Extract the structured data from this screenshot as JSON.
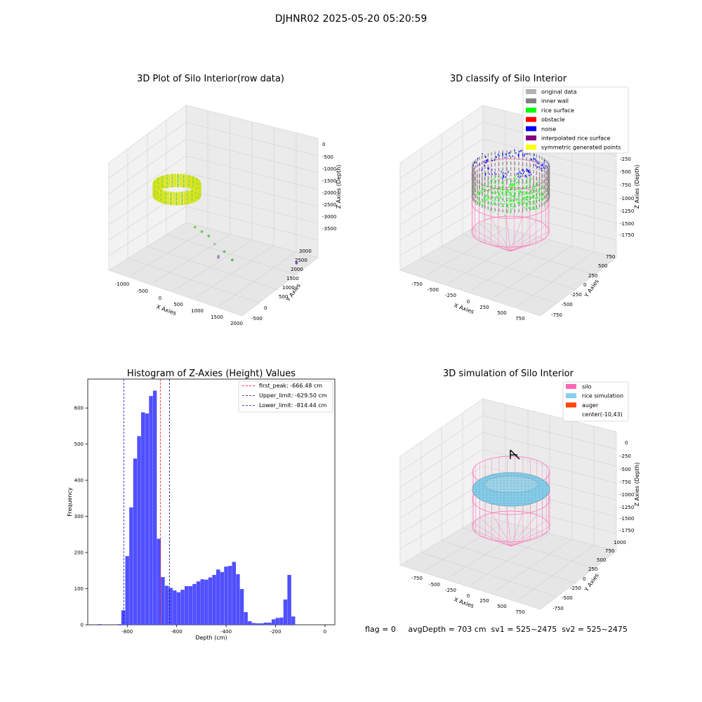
{
  "suptitle": "DJHNR02 2025-05-20 05:20:59",
  "status_text": "flag = 0     avgDepth = 703 cm  sv1 = 525~2475  sv2 = 525~2475",
  "colors": {
    "histogram_bar": "#5050ff",
    "first_peak_line": "#ff0000",
    "limit_line": "#00008b",
    "silo": "#ff69b4",
    "rice_simulation": "#87ceeb",
    "auger": "#ff4500",
    "original_data": "#b3b3b3",
    "inner_wall": "#808080",
    "rice_surface": "#00ff00",
    "obstacle": "#ff0000",
    "noise": "#0000ff",
    "interpolated_rice_surface": "#800080",
    "symmetric_generated_points": "#ffff00"
  },
  "chart_data": [
    {
      "type": "scatter",
      "title": "3D Plot of Silo Interior(row data)",
      "xlabel": "X Axies",
      "ylabel": "Y Axies",
      "zlabel": "Z Axies (Depth)",
      "xticks": [
        "-1000",
        "-500",
        "0",
        "500",
        "1000",
        "1500",
        "2000"
      ],
      "yticks": [
        "-500",
        "0",
        "500",
        "1000",
        "1500",
        "2000",
        "2500",
        "3000"
      ],
      "zticks": [
        "0",
        "-500",
        "-1000",
        "-1500",
        "-2000",
        "-2500",
        "-3000",
        "-3500"
      ],
      "xlim": [
        -1300,
        2100
      ],
      "ylim": [
        -600,
        3300
      ],
      "zlim": [
        -3800,
        100
      ],
      "ring": {
        "cx": 0,
        "cy": 0,
        "radius": 850,
        "z_top": -500,
        "z_bottom": -1200
      },
      "outliers": [
        {
          "x": 500,
          "y": 200,
          "z": -1900
        },
        {
          "x": 650,
          "y": 250,
          "z": -2000
        },
        {
          "x": 800,
          "y": 300,
          "z": -2100
        },
        {
          "x": 950,
          "y": 300,
          "z": -2300
        },
        {
          "x": 1150,
          "y": 400,
          "z": -2500
        },
        {
          "x": 1300,
          "y": 500,
          "z": -2750
        },
        {
          "x": 900,
          "y": 600,
          "z": -2850
        },
        {
          "x": 850,
          "y": 700,
          "z": -2950
        },
        {
          "x": 1850,
          "y": 2700,
          "z": -3500
        }
      ]
    },
    {
      "type": "scatter",
      "title": "3D classify of Silo Interior",
      "xlabel": "X Axies",
      "ylabel": "Y Axies",
      "zlabel": "Z Axies (Depth)",
      "xticks": [
        "-750",
        "-500",
        "-250",
        "0",
        "250",
        "500",
        "750"
      ],
      "yticks": [
        "-750",
        "-500",
        "-250",
        "0",
        "250",
        "500",
        "750"
      ],
      "zticks": [
        "-250",
        "-500",
        "-750",
        "-1000",
        "-1250",
        "-1500",
        "-1750"
      ],
      "xlim": [
        -900,
        900
      ],
      "ylim": [
        -900,
        900
      ],
      "zlim": [
        -1850,
        0
      ],
      "legend": [
        "original data",
        "inner wall",
        "rice surface",
        "obstacle",
        "noise",
        "interpolated rice surface",
        "symmetric generated points"
      ],
      "legend_loc": "upper right"
    },
    {
      "type": "bar",
      "title": "Histogram of Z-Axies (Height) Values",
      "xlabel": "Depth (cm)",
      "ylabel": "Frequency",
      "xlim": [
        -960,
        40
      ],
      "ylim": [
        0,
        680
      ],
      "xticks": [
        -800,
        -600,
        -400,
        -200,
        0
      ],
      "yticks": [
        0,
        100,
        200,
        300,
        400,
        500,
        600
      ],
      "bin_width": 16,
      "bins": [
        {
          "x": -920,
          "value": 2
        },
        {
          "x": -840,
          "value": 2
        },
        {
          "x": -824,
          "value": 40
        },
        {
          "x": -808,
          "value": 190
        },
        {
          "x": -792,
          "value": 325
        },
        {
          "x": -776,
          "value": 460
        },
        {
          "x": -760,
          "value": 522
        },
        {
          "x": -744,
          "value": 588
        },
        {
          "x": -728,
          "value": 585
        },
        {
          "x": -712,
          "value": 633
        },
        {
          "x": -696,
          "value": 648
        },
        {
          "x": -680,
          "value": 238
        },
        {
          "x": -664,
          "value": 132
        },
        {
          "x": -648,
          "value": 108
        },
        {
          "x": -632,
          "value": 102
        },
        {
          "x": -616,
          "value": 95
        },
        {
          "x": -600,
          "value": 90
        },
        {
          "x": -584,
          "value": 97
        },
        {
          "x": -568,
          "value": 107
        },
        {
          "x": -552,
          "value": 107
        },
        {
          "x": -536,
          "value": 113
        },
        {
          "x": -520,
          "value": 120
        },
        {
          "x": -504,
          "value": 126
        },
        {
          "x": -488,
          "value": 125
        },
        {
          "x": -472,
          "value": 131
        },
        {
          "x": -456,
          "value": 138
        },
        {
          "x": -440,
          "value": 153
        },
        {
          "x": -424,
          "value": 146
        },
        {
          "x": -408,
          "value": 161
        },
        {
          "x": -392,
          "value": 163
        },
        {
          "x": -376,
          "value": 174
        },
        {
          "x": -360,
          "value": 140
        },
        {
          "x": -344,
          "value": 99
        },
        {
          "x": -328,
          "value": 35
        },
        {
          "x": -312,
          "value": 10
        },
        {
          "x": -296,
          "value": 5
        },
        {
          "x": -280,
          "value": 4
        },
        {
          "x": -264,
          "value": 4
        },
        {
          "x": -248,
          "value": 6
        },
        {
          "x": -232,
          "value": 6
        },
        {
          "x": -216,
          "value": 15
        },
        {
          "x": -200,
          "value": 19
        },
        {
          "x": -184,
          "value": 20
        },
        {
          "x": -168,
          "value": 70
        },
        {
          "x": -152,
          "value": 138
        },
        {
          "x": -136,
          "value": 23
        }
      ],
      "vlines": [
        {
          "label": "first_peak: -666.48 cm",
          "x": -666.48,
          "color": "#ff0000"
        },
        {
          "label": "Upper_limit: -629.50 cm",
          "x": -629.5,
          "color": "#00008b"
        },
        {
          "label": "Lower_limit: -814.44 cm",
          "x": -814.44,
          "color": "#0000cd"
        }
      ],
      "legend_loc": "upper right"
    },
    {
      "type": "scatter",
      "title": "3D simulation of Silo Interior",
      "xlabel": "X Axies",
      "ylabel": "Y Axies",
      "zlabel": "Z Axies (Depth)",
      "xticks": [
        "-750",
        "-500",
        "-250",
        "0",
        "250",
        "500",
        "750"
      ],
      "yticks": [
        "-750",
        "-500",
        "-250",
        "0",
        "250",
        "500",
        "750",
        "1000"
      ],
      "zticks": [
        "0",
        "-250",
        "-500",
        "-750",
        "-1000",
        "-1250",
        "-1500",
        "-1750"
      ],
      "xlim": [
        -900,
        900
      ],
      "ylim": [
        -900,
        1100
      ],
      "zlim": [
        -1850,
        100
      ],
      "legend": [
        "silo",
        "rice simulation",
        "auger",
        "center(-10,43)"
      ],
      "legend_loc": "upper right"
    }
  ]
}
